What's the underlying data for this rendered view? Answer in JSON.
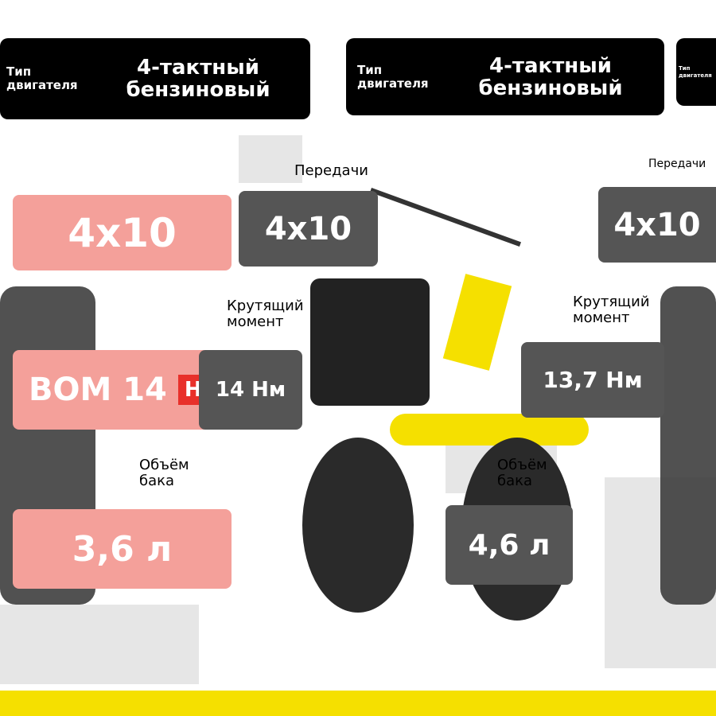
{
  "header": {
    "left": {
      "small": "Тип\nдвигателя",
      "big": "4-тактный\nбензиновый"
    },
    "middle": {
      "small": "Тип\nдвигателя",
      "big": "4-тактный\nбензиновый"
    },
    "right": {
      "small": "Тип\nдвигателя"
    }
  },
  "left": {
    "gears_value": "4x10",
    "torque_value": "ВОМ 14",
    "torque_unit": "Нм",
    "tank_value": "3,6 л"
  },
  "middle": {
    "gears_label": "Передачи",
    "gears_value": "4x10",
    "torque_label": "Крутящий\nмомент",
    "torque_value": "14 Нм",
    "tank_label": "Объём\nбака",
    "tank_value": "4,6 л"
  },
  "right": {
    "gears_label": "Передачи",
    "gears_value": "4x10",
    "torque_label": "Крутящий\nмомент",
    "torque_value": "13,7 Нм",
    "tank_label": "Объём\nбака"
  },
  "colors": {
    "accent_red": "#e8302a",
    "yellow": "#f5e000",
    "bar": "#000000",
    "grey_box": "#555555"
  }
}
